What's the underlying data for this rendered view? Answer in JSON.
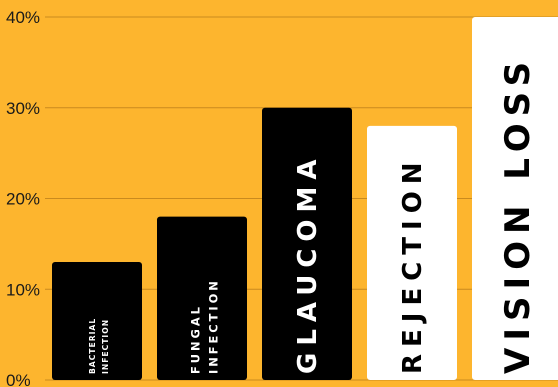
{
  "chart_data": {
    "type": "bar",
    "categories": [
      [
        "BACTERIAL",
        "INFECTION"
      ],
      [
        "FUNGAL",
        "INFECTION"
      ],
      [
        "GLAUCOMA"
      ],
      [
        "REJECTION"
      ],
      [
        "VISION LOSS"
      ]
    ],
    "values": [
      13,
      18,
      30,
      28,
      40
    ],
    "ylim": [
      0,
      40
    ],
    "yticks": [
      "0%",
      "10%",
      "20%",
      "30%",
      "40%"
    ],
    "grid": true,
    "bar_colors": [
      "#000000",
      "#000000",
      "#000000",
      "#FFFFFF",
      "#FFFFFF"
    ],
    "label_colors": [
      "#FFFFFF",
      "#FFFFFF",
      "#FFFFFF",
      "#000000",
      "#000000"
    ],
    "background": "#FDB52E",
    "gridline_color": "#C98A1E"
  }
}
